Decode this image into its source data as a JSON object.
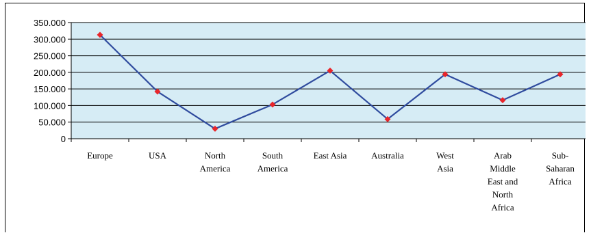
{
  "chart_data": {
    "type": "line",
    "title": "",
    "xlabel": "",
    "ylabel": "",
    "categories": [
      "Europe",
      "USA",
      "North America",
      "South America",
      "East Asia",
      "Australia",
      "West Asia",
      "Arab Middle East and North Africa",
      "Sub-Saharan Africa"
    ],
    "category_label_lines": [
      [
        "Europe"
      ],
      [
        "USA"
      ],
      [
        "North",
        "America"
      ],
      [
        "South",
        "America"
      ],
      [
        "East Asia"
      ],
      [
        "Australia"
      ],
      [
        "West",
        "Asia"
      ],
      [
        "Arab",
        "Middle",
        "East and",
        "North",
        "Africa"
      ],
      [
        "Sub-",
        "Saharan",
        "Africa"
      ]
    ],
    "series": [
      {
        "values": [
          313000,
          142000,
          30000,
          103000,
          205000,
          59000,
          194000,
          116000,
          194000
        ]
      }
    ],
    "ylim": [
      0,
      350000
    ],
    "yticks": [
      0,
      50000,
      100000,
      150000,
      200000,
      250000,
      300000,
      350000
    ],
    "ytick_labels": [
      "0",
      "50.000",
      "100.000",
      "150.000",
      "200.000",
      "250.000",
      "300.000",
      "350.000"
    ],
    "grid": true,
    "legend": "none",
    "colors": {
      "plot_background": "#d6ecf5",
      "gridline": "#000000",
      "line": "#2f4b9e",
      "marker": "#e8262b"
    }
  }
}
